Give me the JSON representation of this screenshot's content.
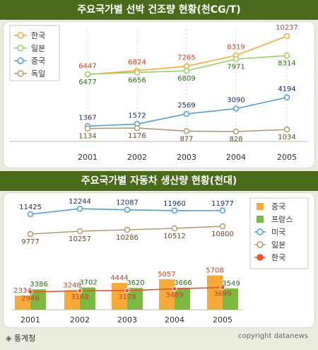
{
  "colors": {
    "banner": "#4a6b1c",
    "korea": "#f7a93a",
    "japan": "#9ccf66",
    "china": "#4f9fd8",
    "germany": "#b49a72",
    "china_bar": "#f7a93a",
    "france_bar": "#7cb842",
    "usa": "#4f9fd8",
    "japan2": "#b49a72",
    "korea2": "#e8542c"
  },
  "footer": {
    "source_icon": "diamond-icon",
    "source": "통계청",
    "copyright": "copyright datanews"
  },
  "chart_data": [
    {
      "type": "line",
      "title": "주요국가별 선박 건조량 현황(천CG/T)",
      "x": [
        "2001",
        "2002",
        "2003",
        "2004",
        "2005"
      ],
      "legend_position": "top-left",
      "ylim": [
        0,
        11000
      ],
      "series": [
        {
          "name": "한국",
          "values": [
            6447,
            6824,
            7265,
            8319,
            10237
          ]
        },
        {
          "name": "일본",
          "values": [
            6477,
            6656,
            6809,
            7971,
            8314
          ]
        },
        {
          "name": "중국",
          "values": [
            1367,
            1572,
            2569,
            3090,
            4194
          ]
        },
        {
          "name": "독일",
          "values": [
            1134,
            1176,
            877,
            828,
            1034
          ]
        }
      ]
    },
    {
      "type": "bar",
      "title": "주요국가별 자동차 생산량 현황(천대)",
      "categories": [
        "2001",
        "2002",
        "2003",
        "2004",
        "2005"
      ],
      "legend_position": "right",
      "series": [
        {
          "name": "중국",
          "kind": "bar",
          "values": [
            2334,
            3248,
            4444,
            5057,
            5708
          ]
        },
        {
          "name": "프랑스",
          "kind": "bar",
          "values": [
            3386,
            3702,
            3620,
            3666,
            3549
          ]
        },
        {
          "name": "미국",
          "kind": "line",
          "values": [
            11425,
            12244,
            12087,
            11960,
            11977
          ]
        },
        {
          "name": "일본",
          "kind": "line",
          "values": [
            9777,
            10257,
            10286,
            10512,
            10800
          ]
        },
        {
          "name": "한국",
          "kind": "line",
          "values": [
            2946,
            3148,
            3178,
            3469,
            3699
          ]
        }
      ]
    }
  ]
}
